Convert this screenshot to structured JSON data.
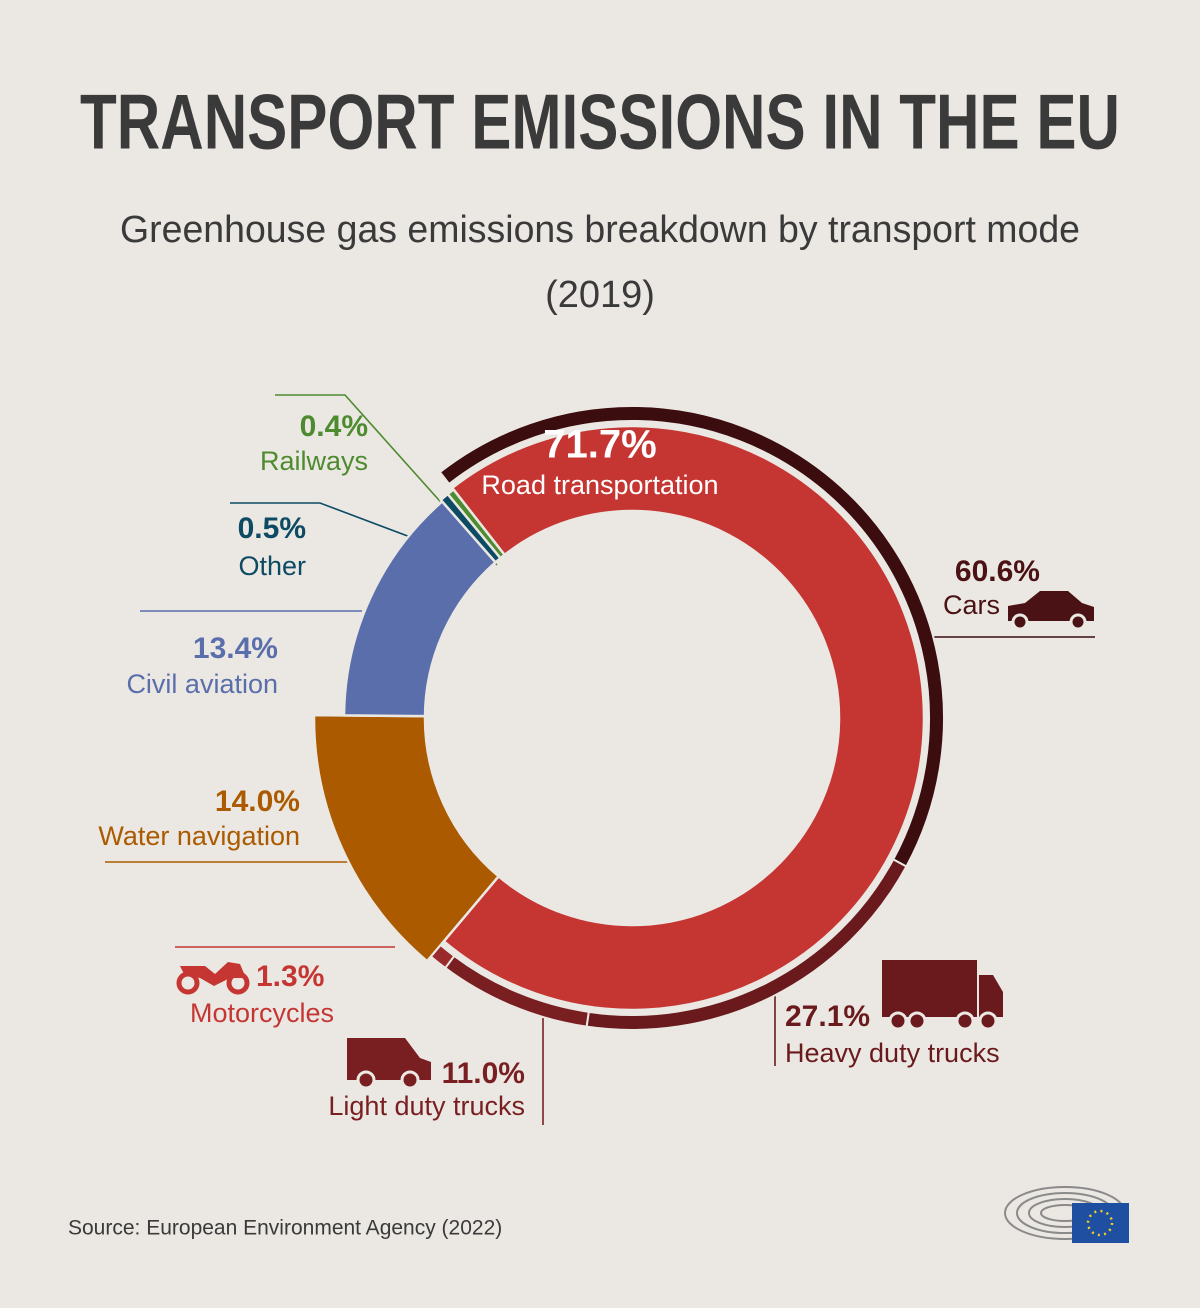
{
  "chart_data": {
    "type": "donut",
    "title": "TRANSPORT EMISSIONS IN THE EU",
    "subtitle": "Greenhouse gas emissions breakdown by transport mode",
    "period": "(2019)",
    "categories": [
      "Road transportation",
      "Water navigation",
      "Civil aviation",
      "Other",
      "Railways"
    ],
    "values": [
      71.7,
      14.0,
      13.4,
      0.5,
      0.4
    ],
    "value_labels": [
      "71.7%",
      "14.0%",
      "13.4%",
      "0.5%",
      "0.4%"
    ],
    "colors": [
      "#c53633",
      "#ab5a00",
      "#5a6eab",
      "#0d4a63",
      "#4e8b2f"
    ],
    "breakdown": {
      "categories": [
        "Cars",
        "Heavy duty trucks",
        "Light duty trucks",
        "Motorcycles"
      ],
      "values": [
        60.6,
        27.1,
        11.0,
        1.3
      ],
      "value_labels": [
        "60.6%",
        "27.1%",
        "11.0%",
        "1.3%"
      ],
      "colors": [
        "#3b0d0f",
        "#6a1a1c",
        "#7a1f21",
        "#9a2a2b"
      ]
    },
    "source": "Source: European Environment Agency (2022)"
  }
}
